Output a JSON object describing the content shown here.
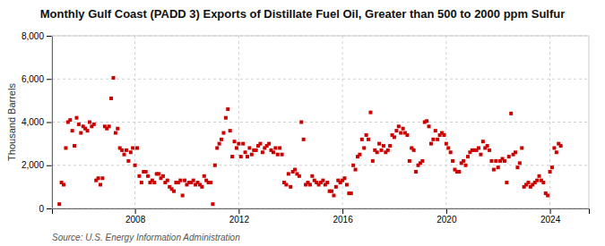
{
  "chart_data": {
    "type": "scatter",
    "title": "Monthly Gulf Coast (PADD 3) Exports of Distillate Fuel Oil, Greater than 500 to 2000 ppm Sulfur",
    "ylabel": "Thousand Barrels",
    "annotations": [
      "Source: U.S. Energy Information Administration"
    ],
    "color": "#cc0000",
    "marker": "square",
    "grid": true,
    "xlim": [
      2004.8,
      2025.5
    ],
    "xticks": [
      2008,
      2012,
      2016,
      2020,
      2024
    ],
    "ylim": [
      0,
      8000
    ],
    "yticks": [
      0,
      {
        "value": 2000,
        "label": "2,000"
      },
      {
        "value": 4000,
        "label": "4,000"
      },
      {
        "value": 6000,
        "label": "6,000"
      },
      {
        "value": 8000,
        "label": "8,000"
      }
    ],
    "x": [
      2005.0833,
      2005.1667,
      2005.25,
      2005.3333,
      2005.4167,
      2005.5,
      2005.5833,
      2005.6667,
      2005.75,
      2005.8333,
      2005.9167,
      2006.0,
      2006.0833,
      2006.1667,
      2006.25,
      2006.3333,
      2006.4167,
      2006.5,
      2006.5833,
      2006.6667,
      2006.75,
      2006.8333,
      2006.9167,
      2007.0,
      2007.0833,
      2007.1667,
      2007.25,
      2007.3333,
      2007.4167,
      2007.5,
      2007.5833,
      2007.6667,
      2007.75,
      2007.8333,
      2007.9167,
      2008.0,
      2008.0833,
      2008.1667,
      2008.25,
      2008.3333,
      2008.4167,
      2008.5,
      2008.5833,
      2008.6667,
      2008.75,
      2008.8333,
      2008.9167,
      2009.0,
      2009.0833,
      2009.1667,
      2009.25,
      2009.3333,
      2009.4167,
      2009.5,
      2009.5833,
      2009.6667,
      2009.75,
      2009.8333,
      2009.9167,
      2010.0,
      2010.0833,
      2010.1667,
      2010.25,
      2010.3333,
      2010.4167,
      2010.5,
      2010.5833,
      2010.6667,
      2010.75,
      2010.8333,
      2010.9167,
      2011.0,
      2011.0833,
      2011.1667,
      2011.25,
      2011.3333,
      2011.4167,
      2011.5,
      2011.5833,
      2011.6667,
      2011.75,
      2011.8333,
      2011.9167,
      2012.0,
      2012.0833,
      2012.1667,
      2012.25,
      2012.3333,
      2012.4167,
      2012.5,
      2012.5833,
      2012.6667,
      2012.75,
      2012.8333,
      2012.9167,
      2013.0,
      2013.0833,
      2013.1667,
      2013.25,
      2013.3333,
      2013.4167,
      2013.5,
      2013.5833,
      2013.6667,
      2013.75,
      2013.8333,
      2013.9167,
      2014.0,
      2014.0833,
      2014.1667,
      2014.25,
      2014.3333,
      2014.4167,
      2014.5,
      2014.5833,
      2014.6667,
      2014.75,
      2014.8333,
      2014.9167,
      2015.0,
      2015.0833,
      2015.1667,
      2015.25,
      2015.3333,
      2015.4167,
      2015.5,
      2015.5833,
      2015.6667,
      2015.75,
      2015.8333,
      2015.9167,
      2016.0,
      2016.0833,
      2016.1667,
      2016.25,
      2016.3333,
      2016.4167,
      2016.5,
      2016.5833,
      2016.6667,
      2016.75,
      2016.8333,
      2016.9167,
      2017.0,
      2017.0833,
      2017.1667,
      2017.25,
      2017.3333,
      2017.4167,
      2017.5,
      2017.5833,
      2017.6667,
      2017.75,
      2017.8333,
      2017.9167,
      2018.0,
      2018.0833,
      2018.1667,
      2018.25,
      2018.3333,
      2018.4167,
      2018.5,
      2018.5833,
      2018.6667,
      2018.75,
      2018.8333,
      2018.9167,
      2019.0,
      2019.0833,
      2019.1667,
      2019.25,
      2019.3333,
      2019.4167,
      2019.5,
      2019.5833,
      2019.6667,
      2019.75,
      2019.8333,
      2019.9167,
      2020.0,
      2020.0833,
      2020.1667,
      2020.25,
      2020.3333,
      2020.4167,
      2020.5,
      2020.5833,
      2020.6667,
      2020.75,
      2020.8333,
      2020.9167,
      2021.0,
      2021.0833,
      2021.1667,
      2021.25,
      2021.3333,
      2021.4167,
      2021.5,
      2021.5833,
      2021.6667,
      2021.75,
      2021.8333,
      2021.9167,
      2022.0,
      2022.0833,
      2022.1667,
      2022.25,
      2022.3333,
      2022.4167,
      2022.5,
      2022.5833,
      2022.6667,
      2022.75,
      2022.8333,
      2022.9167,
      2023.0,
      2023.0833,
      2023.1667,
      2023.25,
      2023.3333,
      2023.4167,
      2023.5,
      2023.5833,
      2023.6667,
      2023.75,
      2023.8333,
      2023.9167,
      2024.0,
      2024.0833,
      2024.1667,
      2024.25,
      2024.3333,
      2024.4167
    ],
    "values": [
      200,
      1200,
      1100,
      2800,
      4000,
      4100,
      3600,
      2900,
      4200,
      3900,
      3500,
      3800,
      3700,
      3600,
      4000,
      3800,
      3900,
      1300,
      1400,
      1100,
      1400,
      3800,
      3700,
      3800,
      5100,
      6050,
      3500,
      3700,
      2800,
      2700,
      2500,
      2700,
      2200,
      2600,
      2800,
      2000,
      2800,
      1500,
      1200,
      1700,
      1700,
      1500,
      1200,
      1300,
      1200,
      1600,
      1600,
      1400,
      1500,
      1200,
      1300,
      1000,
      900,
      800,
      1200,
      1200,
      1300,
      600,
      1300,
      1100,
      1200,
      1200,
      1300,
      1100,
      1200,
      1100,
      1000,
      1500,
      1300,
      1200,
      1200,
      200,
      2000,
      2800,
      3000,
      3200,
      3500,
      4200,
      4600,
      3600,
      2400,
      3100,
      2800,
      3000,
      2400,
      3000,
      2600,
      2400,
      2800,
      2500,
      2700,
      2700,
      2900,
      3000,
      2600,
      2800,
      2900,
      3000,
      2700,
      2600,
      2800,
      2500,
      2800,
      2500,
      1200,
      1100,
      1600,
      1000,
      1700,
      1800,
      1600,
      1500,
      4000,
      3200,
      1100,
      1200,
      1100,
      1500,
      1300,
      1200,
      1100,
      1200,
      1300,
      1100,
      1200,
      800,
      800,
      600,
      1000,
      1300,
      1200,
      1300,
      1400,
      1100,
      700,
      700,
      2000,
      1800,
      2400,
      2500,
      3200,
      2800,
      3400,
      3200,
      4450,
      2200,
      2700,
      2600,
      3000,
      2700,
      2900,
      2600,
      2700,
      2900,
      3400,
      3300,
      3600,
      3800,
      3500,
      3700,
      3500,
      3400,
      2200,
      2800,
      2700,
      1700,
      2000,
      2100,
      2200,
      4000,
      4050,
      3800,
      3000,
      3200,
      3600,
      3200,
      3400,
      3500,
      3400,
      3000,
      2800,
      2600,
      2200,
      1800,
      1700,
      1700,
      2100,
      2200,
      2000,
      2400,
      2600,
      2700,
      2700,
      2700,
      2800,
      2500,
      3100,
      2800,
      2900,
      2700,
      2200,
      1800,
      2200,
      1900,
      2200,
      2300,
      2200,
      1200,
      2400,
      4400,
      2500,
      2600,
      1900,
      2100,
      2800,
      1000,
      1100,
      1200,
      1000,
      1100,
      1200,
      1300,
      1500,
      1300,
      1200,
      700,
      600,
      1700,
      1900,
      2800,
      2600,
      3000,
      2900
    ]
  }
}
